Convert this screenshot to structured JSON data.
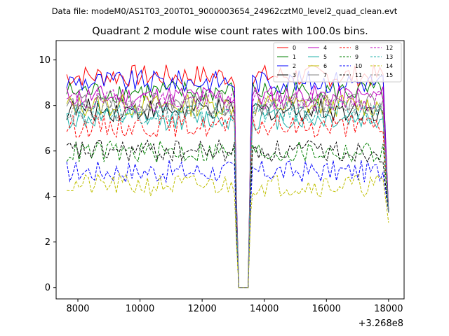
{
  "chart_data": {
    "type": "line",
    "suptitle": "Data file: modeM0/AS1T03_200T01_9000003654_24962cztM0_level2_quad_clean.evt",
    "title": "Quadrant 2 module wise count rates with 100.0s bins.",
    "xlabel": "",
    "ylabel": "",
    "x_offset_label": "+3.268e8",
    "xlim": [
      7300,
      18500
    ],
    "ylim": [
      -0.5,
      10.85
    ],
    "x_ticks": [
      8000,
      10000,
      12000,
      14000,
      16000,
      18000
    ],
    "x_tick_labels": [
      "8000",
      "10000",
      "12000",
      "14000",
      "16000",
      "18000"
    ],
    "y_ticks": [
      0,
      2,
      4,
      6,
      8,
      10
    ],
    "y_tick_labels": [
      "0",
      "2",
      "4",
      "6",
      "8",
      "10"
    ],
    "grid": false,
    "legend_position": "top-right",
    "legend_columns": 4,
    "x_start": 7640,
    "x_step": 100,
    "gap_x": [
      13150,
      13520
    ],
    "end_x": 18000,
    "series": [
      {
        "name": "0",
        "color": "#ff0000",
        "dash": "solid",
        "level": 9.3,
        "end_value": 3.3
      },
      {
        "name": "1",
        "color": "#008000",
        "dash": "solid",
        "level": 8.6,
        "end_value": 3.3
      },
      {
        "name": "2",
        "color": "#0000ff",
        "dash": "solid",
        "level": 9.05,
        "end_value": 3.3
      },
      {
        "name": "3",
        "color": "#000000",
        "dash": "solid",
        "level": 7.8,
        "end_value": 3.3
      },
      {
        "name": "4",
        "color": "#bf00bf",
        "dash": "solid",
        "level": 8.4,
        "end_value": 3.3
      },
      {
        "name": "5",
        "color": "#20b2aa",
        "dash": "solid",
        "level": 7.4,
        "end_value": 3.3
      },
      {
        "name": "6",
        "color": "#bfbf00",
        "dash": "solid",
        "level": 8.0,
        "end_value": 3.3
      },
      {
        "name": "7",
        "color": "#808080",
        "dash": "solid",
        "level": 8.05,
        "end_value": 3.3
      },
      {
        "name": "8",
        "color": "#ff0000",
        "dash": "dashed",
        "level": 7.1,
        "end_value": 3.3
      },
      {
        "name": "9",
        "color": "#008000",
        "dash": "dashed",
        "level": 5.95,
        "end_value": 3.3
      },
      {
        "name": "10",
        "color": "#0000ff",
        "dash": "dashed",
        "level": 5.1,
        "end_value": 3.3
      },
      {
        "name": "11",
        "color": "#000000",
        "dash": "dashed",
        "level": 6.0,
        "end_value": 3.3
      },
      {
        "name": "12",
        "color": "#bf00bf",
        "dash": "dashed",
        "level": 8.2,
        "end_value": 3.3
      },
      {
        "name": "13",
        "color": "#20b2aa",
        "dash": "dashed",
        "level": 7.7,
        "end_value": 3.3
      },
      {
        "name": "14",
        "color": "#bfbf00",
        "dash": "dashed",
        "level": 4.5,
        "end_value": 2.85
      },
      {
        "name": "15",
        "color": "#808080",
        "dash": "dashed",
        "level": 7.9,
        "end_value": 3.3
      }
    ]
  }
}
